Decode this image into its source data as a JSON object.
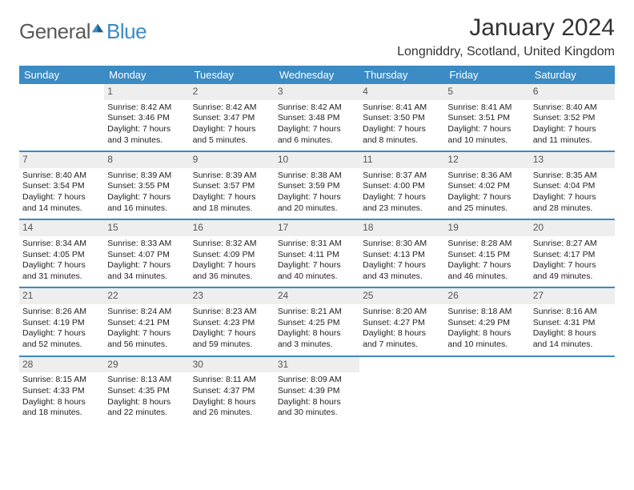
{
  "brand": {
    "part1": "General",
    "part2": "Blue"
  },
  "title": "January 2024",
  "location": "Longniddry, Scotland, United Kingdom",
  "colors": {
    "header_bg": "#3b8bc4",
    "header_text": "#ffffff",
    "daynum_bg": "#eeeeee",
    "rule": "#3b8bc4",
    "text": "#222222",
    "page_bg": "#ffffff"
  },
  "typography": {
    "title_fontsize": 30,
    "location_fontsize": 16,
    "header_fontsize": 13,
    "cell_fontsize": 10.5
  },
  "day_headers": [
    "Sunday",
    "Monday",
    "Tuesday",
    "Wednesday",
    "Thursday",
    "Friday",
    "Saturday"
  ],
  "weeks": [
    [
      null,
      {
        "n": "1",
        "sr": "Sunrise: 8:42 AM",
        "ss": "Sunset: 3:46 PM",
        "dl": "Daylight: 7 hours and 3 minutes."
      },
      {
        "n": "2",
        "sr": "Sunrise: 8:42 AM",
        "ss": "Sunset: 3:47 PM",
        "dl": "Daylight: 7 hours and 5 minutes."
      },
      {
        "n": "3",
        "sr": "Sunrise: 8:42 AM",
        "ss": "Sunset: 3:48 PM",
        "dl": "Daylight: 7 hours and 6 minutes."
      },
      {
        "n": "4",
        "sr": "Sunrise: 8:41 AM",
        "ss": "Sunset: 3:50 PM",
        "dl": "Daylight: 7 hours and 8 minutes."
      },
      {
        "n": "5",
        "sr": "Sunrise: 8:41 AM",
        "ss": "Sunset: 3:51 PM",
        "dl": "Daylight: 7 hours and 10 minutes."
      },
      {
        "n": "6",
        "sr": "Sunrise: 8:40 AM",
        "ss": "Sunset: 3:52 PM",
        "dl": "Daylight: 7 hours and 11 minutes."
      }
    ],
    [
      {
        "n": "7",
        "sr": "Sunrise: 8:40 AM",
        "ss": "Sunset: 3:54 PM",
        "dl": "Daylight: 7 hours and 14 minutes."
      },
      {
        "n": "8",
        "sr": "Sunrise: 8:39 AM",
        "ss": "Sunset: 3:55 PM",
        "dl": "Daylight: 7 hours and 16 minutes."
      },
      {
        "n": "9",
        "sr": "Sunrise: 8:39 AM",
        "ss": "Sunset: 3:57 PM",
        "dl": "Daylight: 7 hours and 18 minutes."
      },
      {
        "n": "10",
        "sr": "Sunrise: 8:38 AM",
        "ss": "Sunset: 3:59 PM",
        "dl": "Daylight: 7 hours and 20 minutes."
      },
      {
        "n": "11",
        "sr": "Sunrise: 8:37 AM",
        "ss": "Sunset: 4:00 PM",
        "dl": "Daylight: 7 hours and 23 minutes."
      },
      {
        "n": "12",
        "sr": "Sunrise: 8:36 AM",
        "ss": "Sunset: 4:02 PM",
        "dl": "Daylight: 7 hours and 25 minutes."
      },
      {
        "n": "13",
        "sr": "Sunrise: 8:35 AM",
        "ss": "Sunset: 4:04 PM",
        "dl": "Daylight: 7 hours and 28 minutes."
      }
    ],
    [
      {
        "n": "14",
        "sr": "Sunrise: 8:34 AM",
        "ss": "Sunset: 4:05 PM",
        "dl": "Daylight: 7 hours and 31 minutes."
      },
      {
        "n": "15",
        "sr": "Sunrise: 8:33 AM",
        "ss": "Sunset: 4:07 PM",
        "dl": "Daylight: 7 hours and 34 minutes."
      },
      {
        "n": "16",
        "sr": "Sunrise: 8:32 AM",
        "ss": "Sunset: 4:09 PM",
        "dl": "Daylight: 7 hours and 36 minutes."
      },
      {
        "n": "17",
        "sr": "Sunrise: 8:31 AM",
        "ss": "Sunset: 4:11 PM",
        "dl": "Daylight: 7 hours and 40 minutes."
      },
      {
        "n": "18",
        "sr": "Sunrise: 8:30 AM",
        "ss": "Sunset: 4:13 PM",
        "dl": "Daylight: 7 hours and 43 minutes."
      },
      {
        "n": "19",
        "sr": "Sunrise: 8:28 AM",
        "ss": "Sunset: 4:15 PM",
        "dl": "Daylight: 7 hours and 46 minutes."
      },
      {
        "n": "20",
        "sr": "Sunrise: 8:27 AM",
        "ss": "Sunset: 4:17 PM",
        "dl": "Daylight: 7 hours and 49 minutes."
      }
    ],
    [
      {
        "n": "21",
        "sr": "Sunrise: 8:26 AM",
        "ss": "Sunset: 4:19 PM",
        "dl": "Daylight: 7 hours and 52 minutes."
      },
      {
        "n": "22",
        "sr": "Sunrise: 8:24 AM",
        "ss": "Sunset: 4:21 PM",
        "dl": "Daylight: 7 hours and 56 minutes."
      },
      {
        "n": "23",
        "sr": "Sunrise: 8:23 AM",
        "ss": "Sunset: 4:23 PM",
        "dl": "Daylight: 7 hours and 59 minutes."
      },
      {
        "n": "24",
        "sr": "Sunrise: 8:21 AM",
        "ss": "Sunset: 4:25 PM",
        "dl": "Daylight: 8 hours and 3 minutes."
      },
      {
        "n": "25",
        "sr": "Sunrise: 8:20 AM",
        "ss": "Sunset: 4:27 PM",
        "dl": "Daylight: 8 hours and 7 minutes."
      },
      {
        "n": "26",
        "sr": "Sunrise: 8:18 AM",
        "ss": "Sunset: 4:29 PM",
        "dl": "Daylight: 8 hours and 10 minutes."
      },
      {
        "n": "27",
        "sr": "Sunrise: 8:16 AM",
        "ss": "Sunset: 4:31 PM",
        "dl": "Daylight: 8 hours and 14 minutes."
      }
    ],
    [
      {
        "n": "28",
        "sr": "Sunrise: 8:15 AM",
        "ss": "Sunset: 4:33 PM",
        "dl": "Daylight: 8 hours and 18 minutes."
      },
      {
        "n": "29",
        "sr": "Sunrise: 8:13 AM",
        "ss": "Sunset: 4:35 PM",
        "dl": "Daylight: 8 hours and 22 minutes."
      },
      {
        "n": "30",
        "sr": "Sunrise: 8:11 AM",
        "ss": "Sunset: 4:37 PM",
        "dl": "Daylight: 8 hours and 26 minutes."
      },
      {
        "n": "31",
        "sr": "Sunrise: 8:09 AM",
        "ss": "Sunset: 4:39 PM",
        "dl": "Daylight: 8 hours and 30 minutes."
      },
      null,
      null,
      null
    ]
  ]
}
